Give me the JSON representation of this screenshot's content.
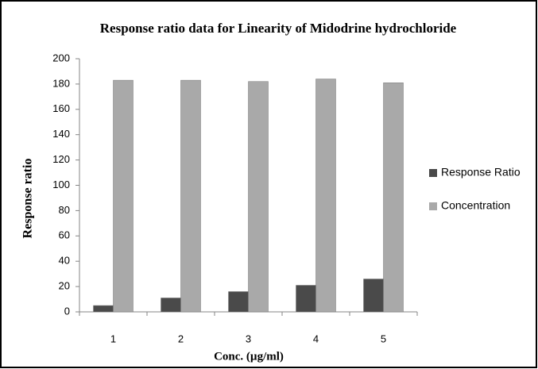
{
  "chart_data": {
    "type": "bar",
    "title": "Response ratio data for Linearity of Midodrine hydrochloride",
    "x_label": "Conc. (µg/ml)",
    "y_label": "Response ratio",
    "categories": [
      "1",
      "2",
      "3",
      "4",
      "5"
    ],
    "series": [
      {
        "name": "Response Ratio",
        "color": "#4a4a4a",
        "values": [
          5,
          11,
          16,
          21,
          26
        ]
      },
      {
        "name": "Concentration",
        "color": "#a9a9a9",
        "values": [
          183,
          183,
          182,
          184,
          181
        ]
      }
    ],
    "ylim": [
      0,
      200
    ],
    "yticks": [
      0,
      20,
      40,
      60,
      80,
      100,
      120,
      140,
      160,
      180,
      200
    ],
    "legend": "right"
  }
}
